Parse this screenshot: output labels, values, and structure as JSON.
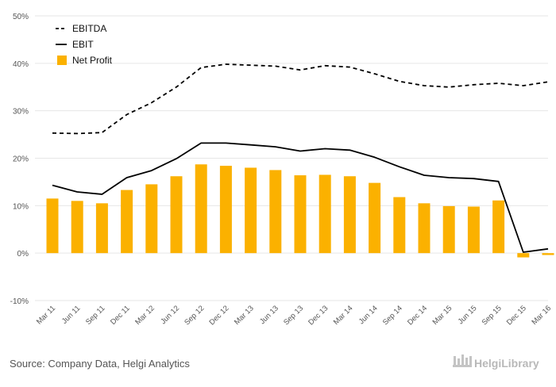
{
  "chart_data": {
    "type": "bar",
    "categories": [
      "Mar 11",
      "Jun 11",
      "Sep 11",
      "Dec 11",
      "Mar 12",
      "Jun 12",
      "Sep 12",
      "Dec 12",
      "Mar 13",
      "Jun 13",
      "Sep 13",
      "Dec 13",
      "Mar 14",
      "Jun 14",
      "Sep 14",
      "Dec 14",
      "Mar 15",
      "Jun 15",
      "Sep 15",
      "Dec 15",
      "Mar 16"
    ],
    "series": [
      {
        "name": "EBITDA",
        "kind": "line",
        "dash": "dashed",
        "color": "#000000",
        "values": [
          25.3,
          25.2,
          25.4,
          29.2,
          31.7,
          35.0,
          39.1,
          39.8,
          39.6,
          39.4,
          38.6,
          39.5,
          39.2,
          37.8,
          36.2,
          35.3,
          35.0,
          35.5,
          35.8,
          35.3,
          36.1
        ]
      },
      {
        "name": "EBIT",
        "kind": "line",
        "dash": "solid",
        "color": "#000000",
        "values": [
          14.3,
          12.9,
          12.4,
          15.9,
          17.4,
          19.9,
          23.2,
          23.2,
          22.8,
          22.4,
          21.5,
          22.0,
          21.7,
          20.2,
          18.2,
          16.4,
          15.9,
          15.7,
          15.1,
          0.2,
          0.9
        ]
      },
      {
        "name": "Net Profit",
        "kind": "bar",
        "color": "#FBB100",
        "values": [
          11.5,
          11.0,
          10.5,
          13.3,
          14.5,
          16.2,
          18.7,
          18.4,
          18.0,
          17.5,
          16.4,
          16.5,
          16.2,
          14.8,
          11.8,
          10.5,
          9.9,
          9.8,
          11.1,
          -0.9,
          -0.4
        ]
      }
    ],
    "yticks": [
      "-10%",
      "0%",
      "10%",
      "20%",
      "30%",
      "40%",
      "50%"
    ],
    "ylim": [
      -10,
      50
    ],
    "grid": true,
    "legend": "top-left",
    "xlabel": "",
    "ylabel": ""
  },
  "footer": {
    "source": "Source: Company Data, Helgi Analytics",
    "brand": "HelgiLibrary"
  }
}
